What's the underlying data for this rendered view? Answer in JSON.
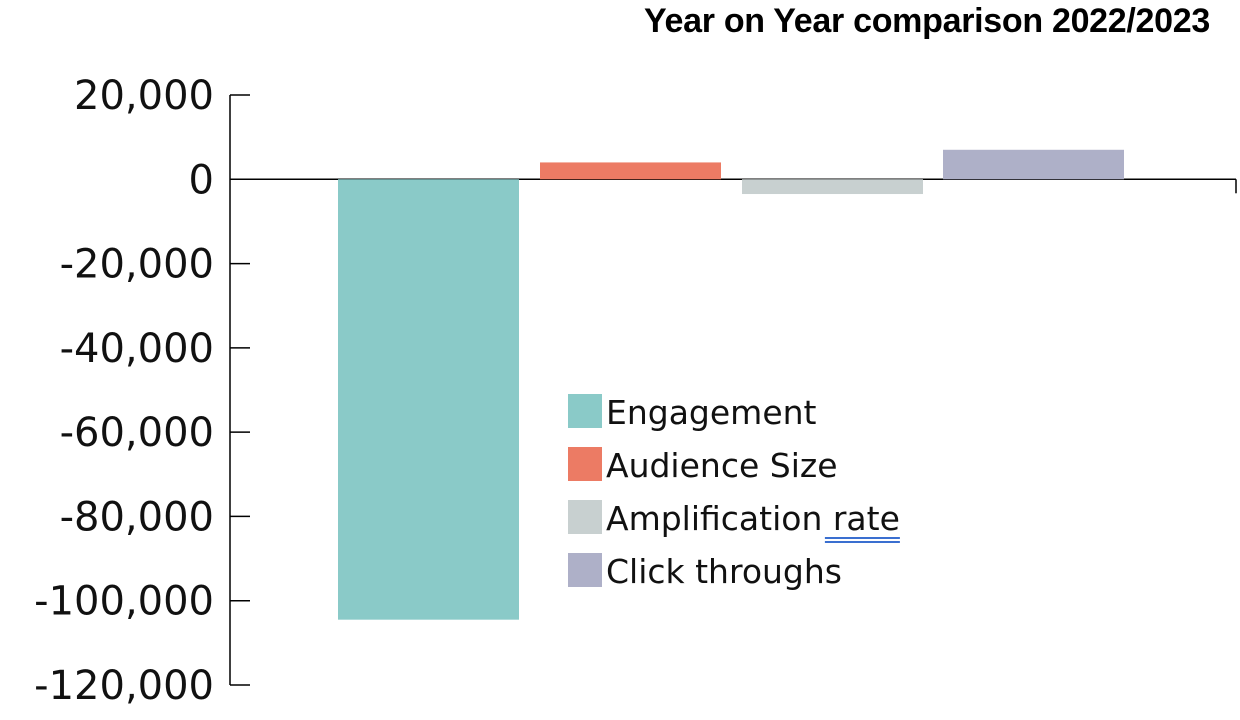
{
  "chart_data": {
    "type": "bar",
    "title_parts": [
      "Year on Year",
      "comparison 2022/2023"
    ],
    "xlabel": "",
    "ylabel": "",
    "ylim": [
      -120000,
      20000
    ],
    "yticks": [
      20000,
      0,
      -20000,
      -40000,
      -60000,
      -80000,
      -100000,
      -120000
    ],
    "ytick_labels": [
      "20,000",
      "0",
      "-20,000",
      "-40,000",
      "-60,000",
      "-80,000",
      "-100,000",
      "-120,000"
    ],
    "grid": false,
    "legend_position": "center-right",
    "series": [
      {
        "name": "Engagement",
        "value": -104500,
        "color": "#8acac8"
      },
      {
        "name": "Audience Size",
        "value": 4000,
        "color": "#ec7b64"
      },
      {
        "name": "Amplification rate",
        "value": -3500,
        "color": "#c8d0d0"
      },
      {
        "name": "Click throughs",
        "value": 7000,
        "color": "#aeb0c8"
      }
    ]
  }
}
